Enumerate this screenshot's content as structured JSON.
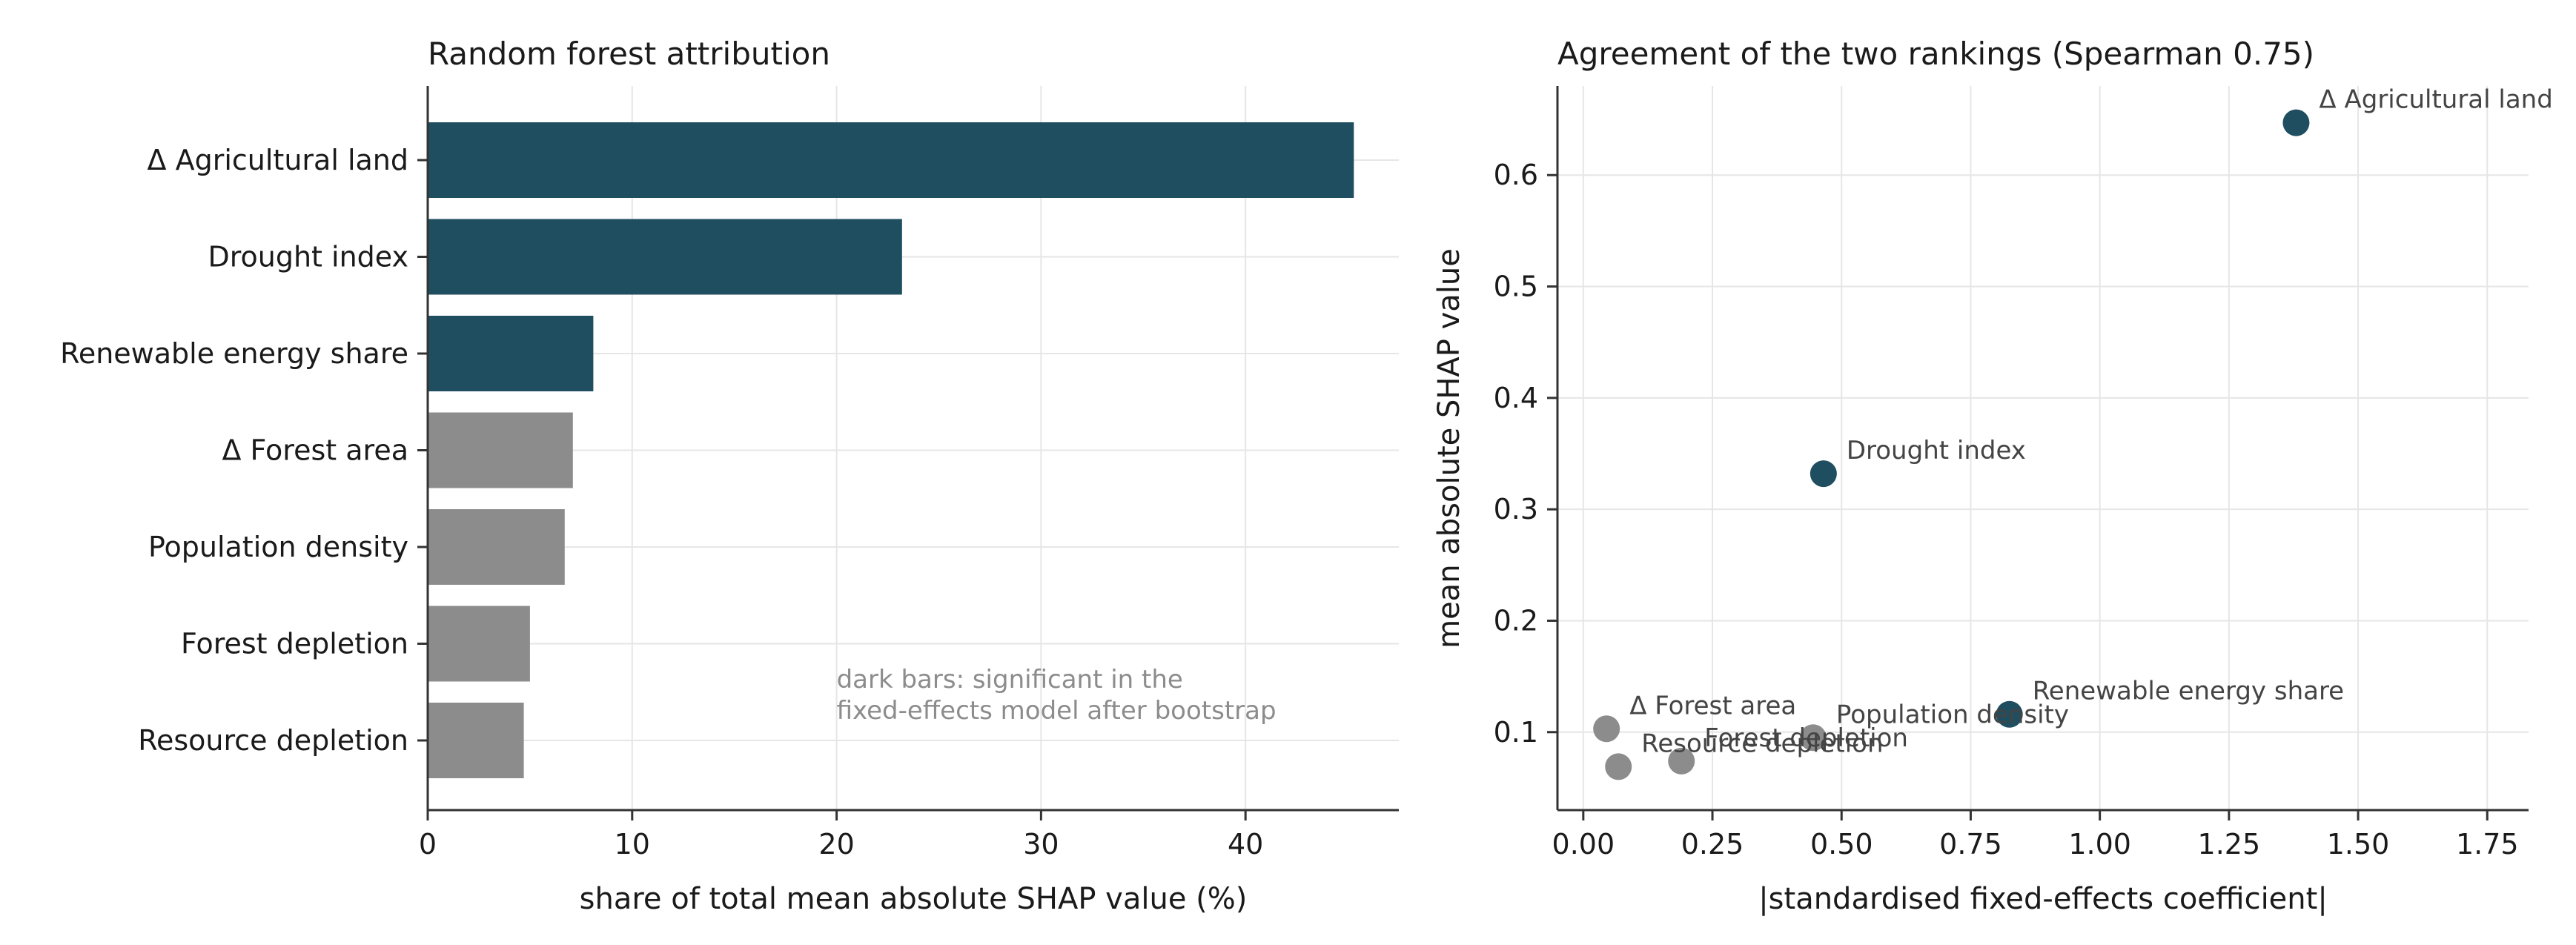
{
  "chart_data": [
    {
      "type": "bar",
      "orientation": "horizontal",
      "title": "Random forest attribution",
      "xlabel": "share of total mean absolute SHAP value (%)",
      "ylabel": "",
      "xlim": [
        0,
        47.5
      ],
      "xticks": [
        0,
        10,
        20,
        30,
        40
      ],
      "grid": true,
      "categories": [
        "Δ Agricultural land",
        "Drought index",
        "Renewable energy share",
        "Δ Forest area",
        "Population density",
        "Forest depletion",
        "Resource depletion"
      ],
      "values": [
        45.3,
        23.2,
        8.1,
        7.1,
        6.7,
        5.0,
        4.7
      ],
      "significant": [
        true,
        true,
        true,
        false,
        false,
        false,
        false
      ],
      "annotation": "dark bars: significant in the fixed-effects model after bootstrap",
      "annotation_lines": [
        "dark bars: significant in the",
        "fixed-effects model after bootstrap"
      ],
      "annotation_xy": [
        20,
        5.5
      ],
      "colors": {
        "significant": "#1f4e60",
        "not_significant": "#8c8c8c"
      }
    },
    {
      "type": "scatter",
      "title": "Agreement of the two rankings (Spearman 0.75)",
      "xlabel": "|standardised fixed-effects coefficient|",
      "ylabel": "mean absolute SHAP value",
      "xlim": [
        -0.05,
        1.83
      ],
      "ylim": [
        0.03,
        0.68
      ],
      "xticks": [
        0.0,
        0.25,
        0.5,
        0.75,
        1.0,
        1.25,
        1.5,
        1.75
      ],
      "xtick_labels": [
        "0.00",
        "0.25",
        "0.50",
        "0.75",
        "1.00",
        "1.25",
        "1.50",
        "1.75"
      ],
      "yticks": [
        0.1,
        0.2,
        0.3,
        0.4,
        0.5,
        0.6
      ],
      "ytick_labels": [
        "0.1",
        "0.2",
        "0.3",
        "0.4",
        "0.5",
        "0.6"
      ],
      "grid": true,
      "points": [
        {
          "label": "Δ Agricultural land",
          "x": 1.38,
          "y": 0.647,
          "significant": true
        },
        {
          "label": "Drought index",
          "x": 0.465,
          "y": 0.332,
          "significant": true
        },
        {
          "label": "Renewable energy share",
          "x": 0.825,
          "y": 0.116,
          "significant": true
        },
        {
          "label": "Δ Forest area",
          "x": 0.045,
          "y": 0.103,
          "significant": false
        },
        {
          "label": "Population density",
          "x": 0.445,
          "y": 0.095,
          "significant": false
        },
        {
          "label": "Forest depletion",
          "x": 0.19,
          "y": 0.074,
          "significant": false
        },
        {
          "label": "Resource depletion",
          "x": 0.068,
          "y": 0.069,
          "significant": false
        }
      ],
      "colors": {
        "significant": "#1f4e60",
        "not_significant": "#8c8c8c"
      }
    }
  ]
}
